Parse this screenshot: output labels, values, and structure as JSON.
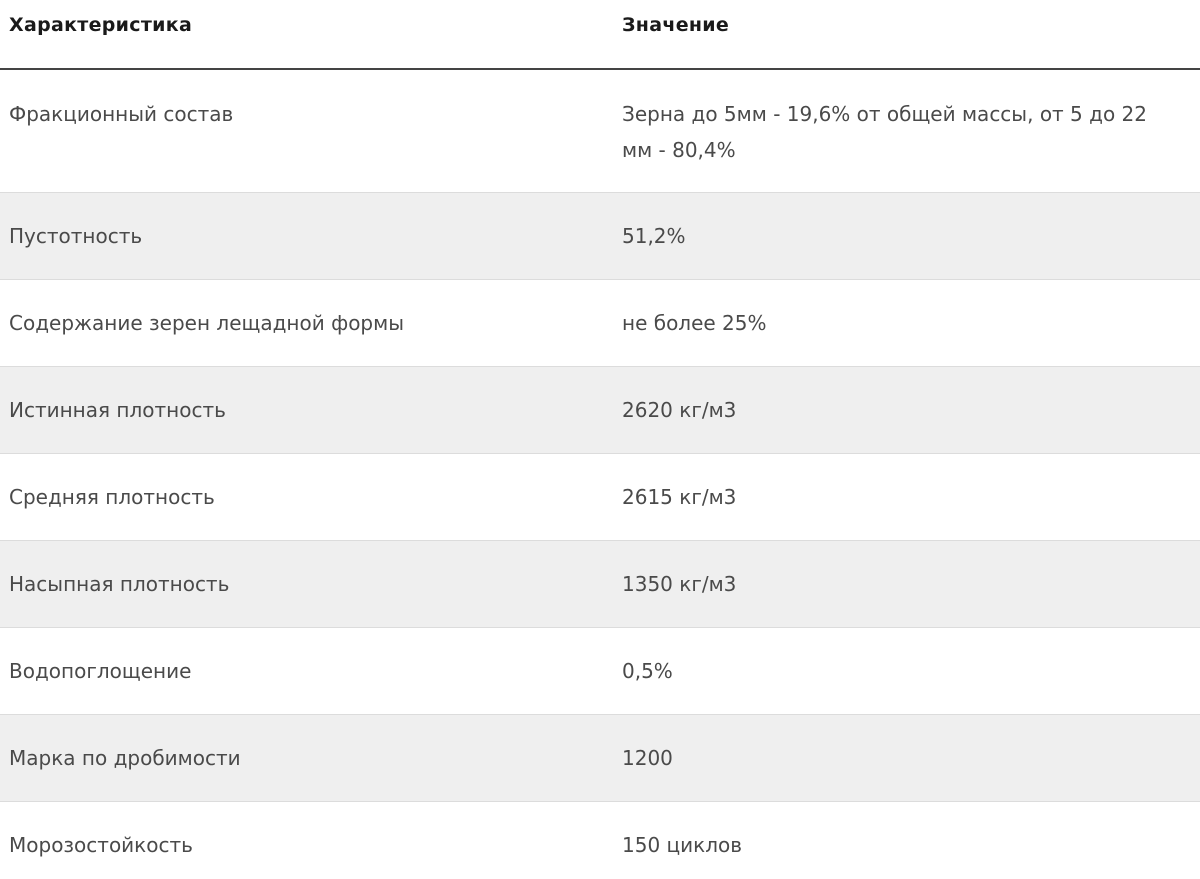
{
  "table": {
    "headers": {
      "characteristic": "Характеристика",
      "value": "Значение"
    },
    "rows": [
      {
        "characteristic": "Фракционный состав",
        "value": "Зерна до 5мм - 19,6% от общей массы, от 5 до 22 мм - 80,4%"
      },
      {
        "characteristic": "Пустотность",
        "value": "51,2%"
      },
      {
        "characteristic": "Содержание зерен лещадной формы",
        "value": "не более 25%"
      },
      {
        "characteristic": "Истинная плотность",
        "value": "2620 кг/м3"
      },
      {
        "characteristic": "Средняя плотность",
        "value": "2615 кг/м3"
      },
      {
        "characteristic": "Насыпная плотность",
        "value": "1350 кг/м3"
      },
      {
        "characteristic": "Водопоглощение",
        "value": "0,5%"
      },
      {
        "characteristic": "Марка по дробимости",
        "value": "1200"
      },
      {
        "characteristic": "Морозостойкость",
        "value": "150 циклов"
      }
    ]
  }
}
